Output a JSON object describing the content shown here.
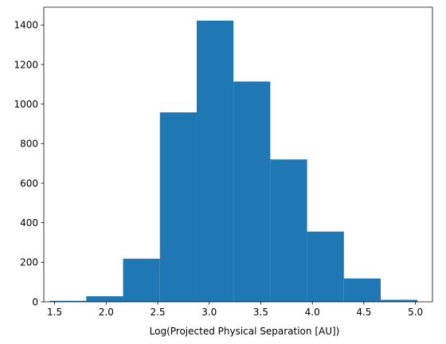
{
  "chart_data": {
    "type": "bar",
    "subtype": "histogram",
    "title": "",
    "xlabel": "Log(Projected Physical Separation [AU])",
    "ylabel": "",
    "bin_edges": [
      1.45,
      1.807,
      2.164,
      2.521,
      2.878,
      3.235,
      3.592,
      3.949,
      4.306,
      4.663,
      5.02
    ],
    "counts": [
      5,
      28,
      218,
      958,
      1422,
      1114,
      720,
      355,
      118,
      10
    ],
    "xlim": [
      1.395,
      5.165
    ],
    "ylim": [
      0,
      1490
    ],
    "xticks": [
      1.5,
      2.0,
      2.5,
      3.0,
      3.5,
      4.0,
      4.5,
      5.0
    ],
    "xtick_labels": [
      "1.5",
      "2.0",
      "2.5",
      "3.0",
      "3.5",
      "4.0",
      "4.5",
      "5.0"
    ],
    "yticks": [
      0,
      200,
      400,
      600,
      800,
      1000,
      1200,
      1400
    ],
    "ytick_labels": [
      "0",
      "200",
      "400",
      "600",
      "800",
      "1000",
      "1200",
      "1400"
    ],
    "bar_color": "#1f77b4",
    "grid": false,
    "legend": false
  }
}
